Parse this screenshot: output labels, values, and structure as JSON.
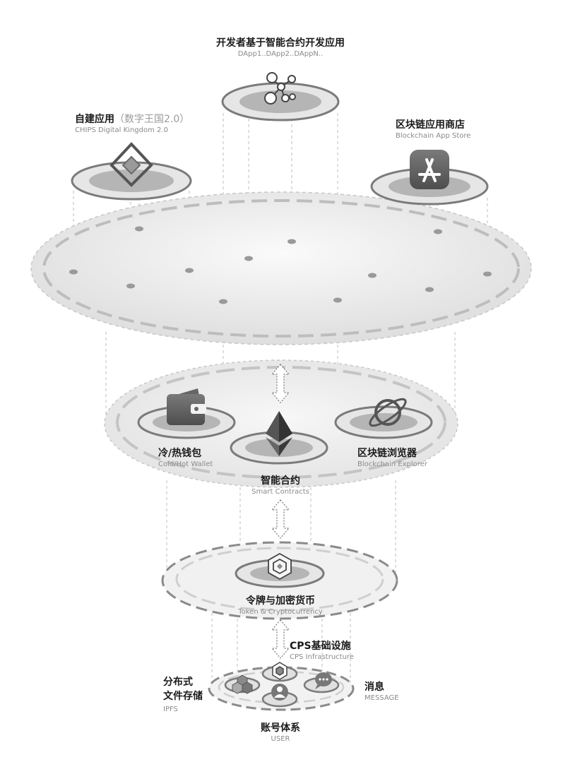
{
  "top_app": {
    "title": "开发者基于智能合约开发应用",
    "subtitle": "DApp1..DApp2..DAppN.."
  },
  "self_app": {
    "title": "自建应用",
    "title_note": "（数字王国2.0）",
    "subtitle": "CHIPS Digital Kingdom 2.0"
  },
  "app_store": {
    "title": "区块链应用商店",
    "subtitle": "Blockchain App Store"
  },
  "wallet": {
    "title": "冷/热钱包",
    "subtitle": "Cold/Hot Wallet"
  },
  "explorer": {
    "title": "区块链浏览器",
    "subtitle": "Blockchain Explorer"
  },
  "smart_contracts": {
    "title": "智能合约",
    "subtitle": "Smart Contracts"
  },
  "token": {
    "title": "令牌与加密货币",
    "subtitle": "Token & Cryptocurrency"
  },
  "infra": {
    "title": "CPS基础设施",
    "subtitle": "CPS Infrastructure"
  },
  "ipfs": {
    "title_line1": "分布式",
    "title_line2": "文件存储",
    "subtitle": "IPFS"
  },
  "message": {
    "title": "消息",
    "subtitle": "MESSAGE"
  },
  "user": {
    "title": "账号体系",
    "subtitle": "USER"
  }
}
